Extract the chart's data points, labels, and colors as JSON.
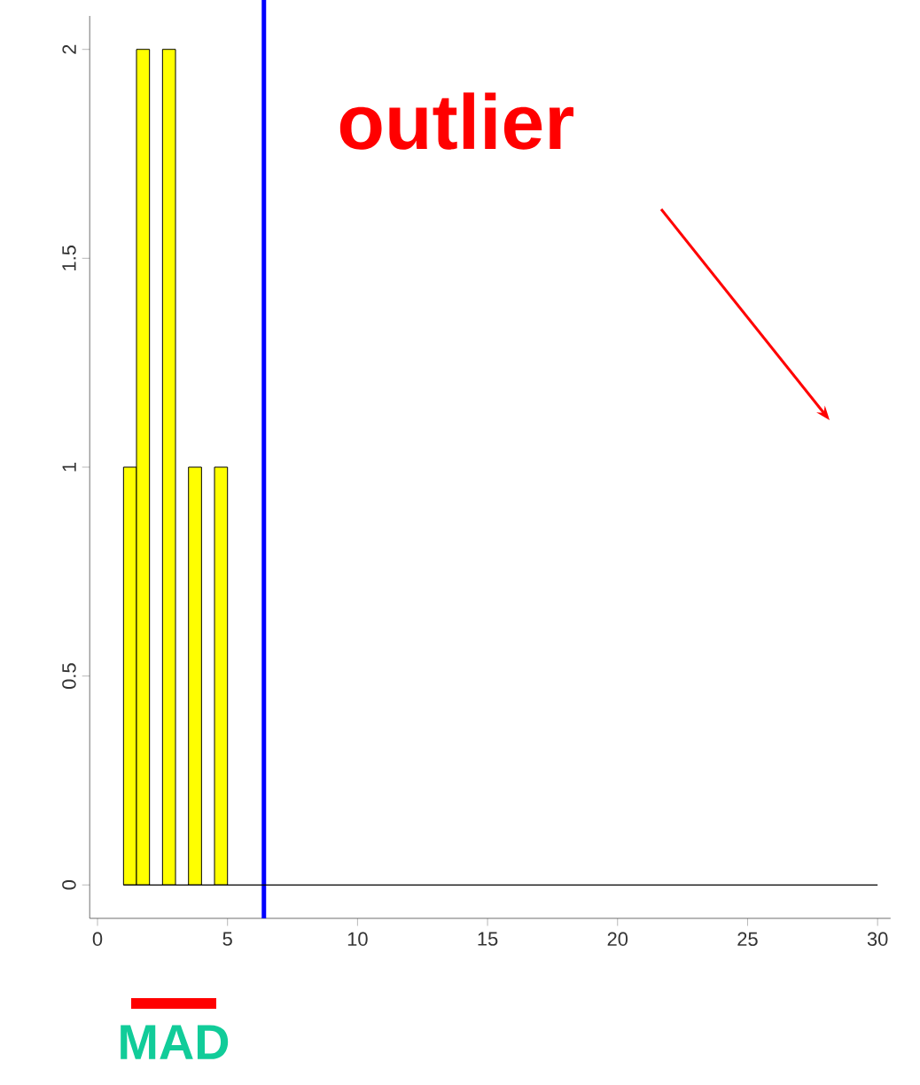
{
  "chart_data": {
    "type": "histogram",
    "bins": [
      1,
      1.5,
      2,
      2.5,
      3,
      3.5,
      4,
      4.5,
      5
    ],
    "values": [
      1,
      2,
      0,
      2,
      0,
      1,
      0,
      1
    ],
    "color": "#ffff00",
    "xlim": [
      -0.3,
      30.5
    ],
    "xticks": [
      0,
      5,
      10,
      15,
      20,
      25,
      30
    ],
    "ylim": [
      -0.08,
      2.08
    ],
    "yticks": [
      0,
      0.5,
      1,
      1.5,
      2
    ],
    "ref_lines": [
      {
        "axis": "x",
        "value": 6.4,
        "color": "#0000ff"
      },
      {
        "axis": "y",
        "value": 0,
        "color": "#000000"
      }
    ],
    "annotations": [
      "outlier",
      "MAD"
    ]
  }
}
